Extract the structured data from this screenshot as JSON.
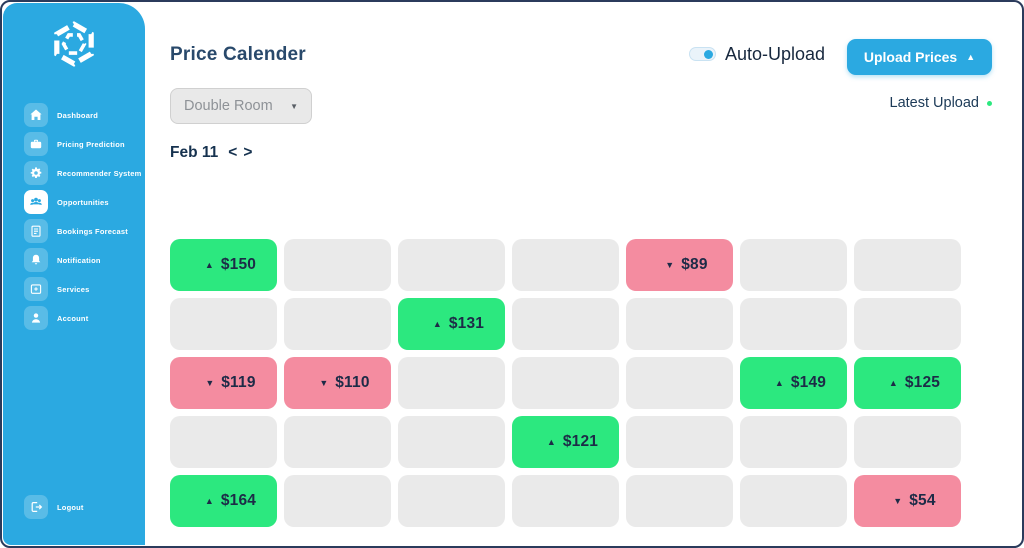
{
  "colors": {
    "accent": "#2BA9E1",
    "frame": "#2B3B5C",
    "green": "#2CE87F",
    "pink": "#F48CA0",
    "gray-cell": "#EAEAEA",
    "price-text": "#1D2B47"
  },
  "sidebar": {
    "items": [
      {
        "label": "Dashboard",
        "icon": "home",
        "active": false
      },
      {
        "label": "Pricing Prediction",
        "icon": "briefcase",
        "active": false
      },
      {
        "label": "Recommender System",
        "icon": "gear",
        "active": false
      },
      {
        "label": "Opportunities",
        "icon": "users",
        "active": true
      },
      {
        "label": "Bookings Forecast",
        "icon": "clipboard",
        "active": false
      },
      {
        "label": "Notification",
        "icon": "bell",
        "active": false
      },
      {
        "label": "Services",
        "icon": "box-plus",
        "active": false
      },
      {
        "label": "Account",
        "icon": "user",
        "active": false
      }
    ],
    "logout": {
      "label": "Logout",
      "icon": "logout"
    }
  },
  "header": {
    "title": "Price Calender",
    "room_selector": {
      "value": "Double Room",
      "caret": "▼"
    },
    "auto_upload": {
      "label": "Auto-Upload",
      "enabled": true
    },
    "upload_button": {
      "label": "Upload Prices",
      "caret": "▲"
    },
    "latest_upload": {
      "label": "Latest Upload"
    }
  },
  "calendar": {
    "date_label": "Feb 11",
    "prev": "<",
    "next": ">",
    "trend_glyphs": {
      "up": "▲",
      "down": "▼"
    },
    "rows": [
      [
        {
          "price": "$150",
          "trend": "up"
        },
        null,
        null,
        null,
        {
          "price": "$89",
          "trend": "down"
        },
        null,
        null
      ],
      [
        null,
        null,
        {
          "price": "$131",
          "trend": "up"
        },
        null,
        null,
        null,
        null
      ],
      [
        {
          "price": "$119",
          "trend": "down"
        },
        {
          "price": "$110",
          "trend": "down"
        },
        null,
        null,
        null,
        {
          "price": "$149",
          "trend": "up"
        },
        {
          "price": "$125",
          "trend": "up"
        }
      ],
      [
        null,
        null,
        null,
        {
          "price": "$121",
          "trend": "up"
        },
        null,
        null,
        null
      ],
      [
        {
          "price": "$164",
          "trend": "up"
        },
        null,
        null,
        null,
        null,
        null,
        {
          "price": "$54",
          "trend": "down"
        }
      ]
    ]
  }
}
